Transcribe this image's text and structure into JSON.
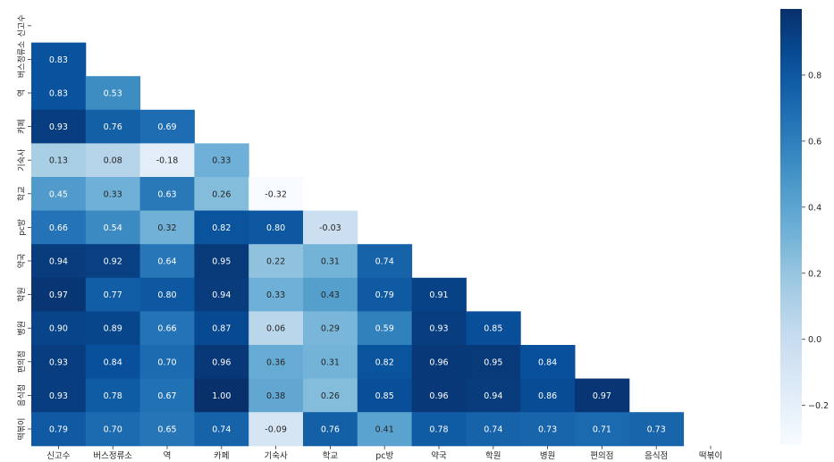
{
  "chart_data": {
    "type": "heatmap",
    "title": "",
    "xlabel": "",
    "ylabel": "",
    "labels": [
      "신고수",
      "버스정류소",
      "역",
      "카페",
      "기숙사",
      "학교",
      "pc방",
      "약국",
      "학원",
      "병원",
      "편의점",
      "음식점",
      "떡볶이"
    ],
    "row_labels": [
      "신고수",
      "버스정류소",
      "역",
      "카페",
      "기숙사",
      "학교",
      "pc방",
      "약국",
      "학원",
      "병원",
      "편의점",
      "음식점",
      "떡볶이"
    ],
    "col_labels": [
      "신고수",
      "버스정류소",
      "역",
      "카페",
      "기숙사",
      "학교",
      "pc방",
      "약국",
      "학원",
      "병원",
      "편의점",
      "음식점",
      "떡볶이"
    ],
    "mask": "upper-triangle-including-diagonal",
    "values": [
      [],
      [
        0.83
      ],
      [
        0.83,
        0.53
      ],
      [
        0.93,
        0.76,
        0.69
      ],
      [
        0.13,
        0.08,
        -0.18,
        0.33
      ],
      [
        0.45,
        0.33,
        0.63,
        0.26,
        -0.32
      ],
      [
        0.66,
        0.54,
        0.32,
        0.82,
        0.8,
        -0.03
      ],
      [
        0.94,
        0.92,
        0.64,
        0.95,
        0.22,
        0.31,
        0.74
      ],
      [
        0.97,
        0.77,
        0.8,
        0.94,
        0.33,
        0.43,
        0.79,
        0.91
      ],
      [
        0.9,
        0.89,
        0.66,
        0.87,
        0.06,
        0.29,
        0.59,
        0.93,
        0.85
      ],
      [
        0.93,
        0.84,
        0.7,
        0.96,
        0.36,
        0.31,
        0.82,
        0.96,
        0.95,
        0.84
      ],
      [
        0.93,
        0.78,
        0.67,
        1.0,
        0.38,
        0.26,
        0.85,
        0.96,
        0.94,
        0.86,
        0.97
      ],
      [
        0.79,
        0.7,
        0.65,
        0.74,
        -0.09,
        0.76,
        0.41,
        0.78,
        0.74,
        0.73,
        0.71,
        0.73
      ]
    ],
    "colorbar": {
      "colormap": "Blues",
      "vmin": -0.32,
      "vmax": 1.0,
      "ticks": [
        0.8,
        0.6,
        0.4,
        0.2,
        0.0,
        -0.2
      ],
      "tick_labels": [
        "0.8",
        "0.6",
        "0.4",
        "0.2",
        "0.0",
        "−0.2"
      ]
    }
  }
}
